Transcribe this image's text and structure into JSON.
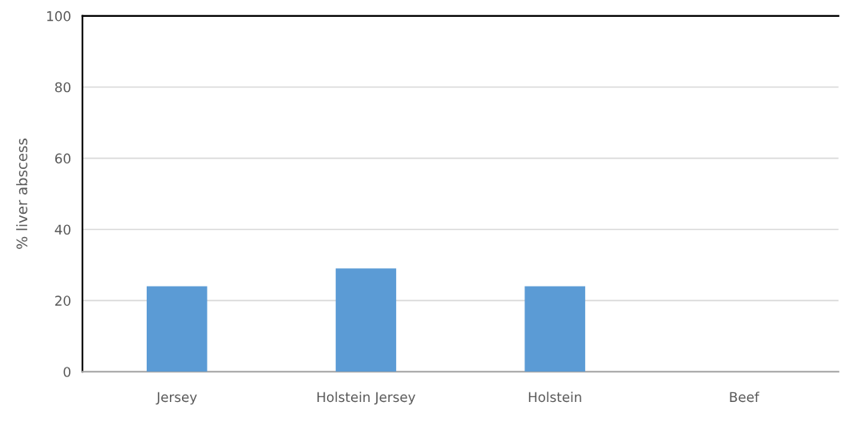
{
  "chart_data": {
    "type": "bar",
    "ylabel": "% liver abscess",
    "categories": [
      "Jersey",
      "Holstein Jersey",
      "Holstein",
      "Beef"
    ],
    "values": [
      24,
      29,
      24,
      0
    ],
    "color": "#5b9bd5",
    "ylim": [
      0,
      100
    ],
    "yticks": [
      0,
      20,
      40,
      60,
      80,
      100
    ],
    "grid": "y"
  }
}
